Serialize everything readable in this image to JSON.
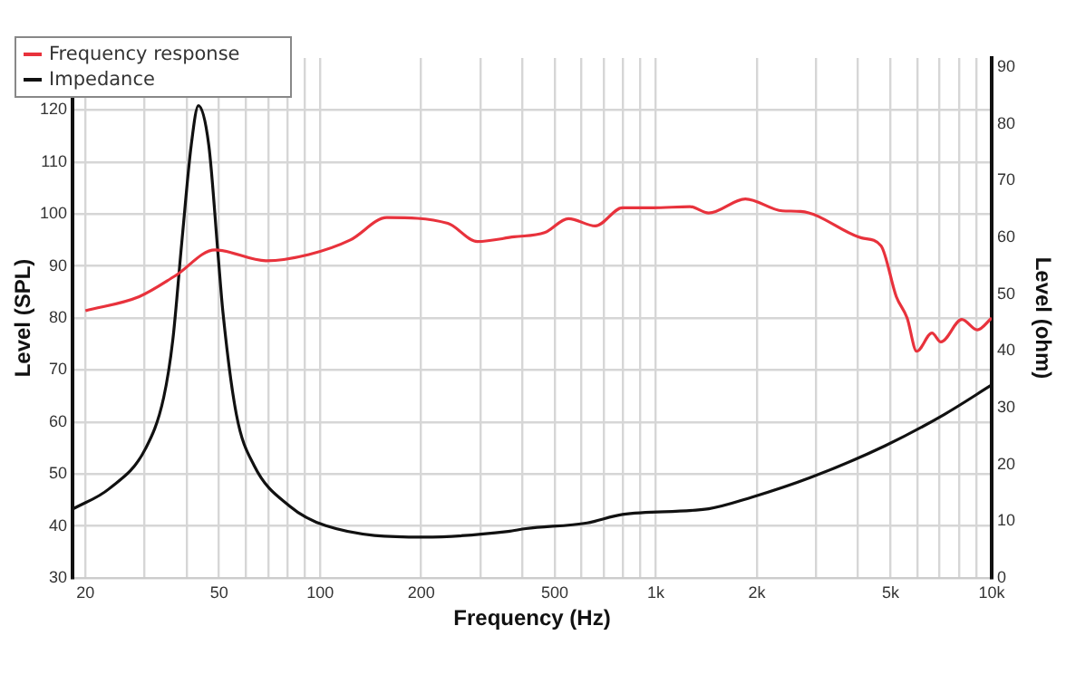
{
  "chart_data": {
    "type": "line",
    "xlabel": "Frequency (Hz)",
    "ylabel": "Level (SPL)",
    "y2label": "Level (ohm)",
    "log": "x",
    "grid": true,
    "legend": "top left",
    "marker": "none",
    "line_style": "solid",
    "xlim": [
      18.3,
      10000
    ],
    "xticks": [
      20,
      {
        "value": 30,
        "label": null
      },
      {
        "value": 40,
        "label": null
      },
      50,
      {
        "value": 60,
        "label": null
      },
      {
        "value": 70,
        "label": null
      },
      {
        "value": 80,
        "label": null
      },
      {
        "value": 90,
        "label": null
      },
      100,
      200,
      {
        "value": 300,
        "label": null
      },
      {
        "value": 400,
        "label": null
      },
      500,
      {
        "value": 600,
        "label": null
      },
      {
        "value": 700,
        "label": null
      },
      {
        "value": 800,
        "label": null
      },
      {
        "value": 900,
        "label": null
      },
      {
        "value": 1000,
        "label": "1k"
      },
      {
        "value": 2000,
        "label": "2k"
      },
      {
        "value": 3000,
        "label": null
      },
      {
        "value": 4000,
        "label": null
      },
      {
        "value": 5000,
        "label": "5k"
      },
      {
        "value": 6000,
        "label": null
      },
      {
        "value": 7000,
        "label": null
      },
      {
        "value": 8000,
        "label": null
      },
      {
        "value": 9000,
        "label": null
      },
      {
        "value": 10000,
        "label": "10k"
      }
    ],
    "ylim": [
      30,
      130
    ],
    "yticks": [
      30,
      40,
      50,
      60,
      70,
      80,
      90,
      100,
      110,
      120
    ],
    "y2lim": [
      0,
      91.6
    ],
    "y2ticks": [
      0,
      10,
      20,
      30,
      40,
      50,
      60,
      70,
      80,
      90
    ],
    "series": [
      {
        "name": "Frequency response",
        "color": "#e8323c",
        "x": [
          20,
          28.9,
          37,
          48.6,
          69,
          92.5,
          123,
          158,
          240,
          294,
          378,
          466,
          549,
          660,
          795,
          980,
          1264,
          1436,
          1847,
          2380,
          2700,
          4100,
          4680,
          5200,
          5600,
          5980,
          6640,
          7060,
          8150,
          9060,
          10000
        ],
        "values": [
          81.4,
          84.1,
          88.1,
          93.1,
          91,
          92.2,
          95,
          99.3,
          98.2,
          94.7,
          95.6,
          96.4,
          99.1,
          97.7,
          101.2,
          101.2,
          101.4,
          100.2,
          102.9,
          100.6,
          100.5,
          95.4,
          93.9,
          84.1,
          80,
          73.6,
          77.1,
          75.4,
          79.7,
          77.7,
          80
        ]
      },
      {
        "name": "Impedance",
        "color": "#111111",
        "axis": "y2",
        "x": [
          18.4,
          23.5,
          30.2,
          34.2,
          36.4,
          38.7,
          41.3,
          43.4,
          46.6,
          49.8,
          51.3,
          56.3,
          63.6,
          81,
          104,
          203,
          363,
          410,
          624,
          795,
          1436,
          1926,
          2890,
          4820,
          7220,
          10000
        ],
        "values": [
          12.2,
          15.7,
          22.8,
          31.8,
          41.9,
          59,
          76.2,
          83.2,
          76.2,
          56,
          47,
          28.8,
          19.8,
          12.7,
          9.2,
          7.2,
          8.2,
          8.7,
          9.7,
          11.2,
          12.2,
          14.2,
          17.7,
          23.3,
          28.8,
          34
        ]
      }
    ]
  }
}
